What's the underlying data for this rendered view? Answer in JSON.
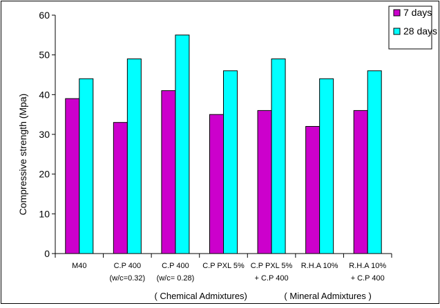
{
  "chart_data": {
    "type": "bar",
    "title": "",
    "xlabel": "",
    "ylabel": "Compressive strength (Mpa)",
    "ylim": [
      0,
      60
    ],
    "yticks": [
      0,
      10,
      20,
      30,
      40,
      50,
      60
    ],
    "grid": false,
    "legend_position": "top-right",
    "categories": [
      [
        "M40"
      ],
      [
        "C.P 400",
        "(w/c=0.32)"
      ],
      [
        "C.P 400",
        "(w/c= 0.28)"
      ],
      [
        "C.P PXL 5%"
      ],
      [
        "C.P PXL 5%",
        "+      C.P 400"
      ],
      [
        "R.H.A 10%"
      ],
      [
        "R.H.A 10%",
        "+ C.P 400"
      ]
    ],
    "series": [
      {
        "name": "7 days",
        "color": "#CC00CC",
        "values": [
          39,
          33,
          41,
          35,
          36,
          32,
          36
        ]
      },
      {
        "name": "28 days",
        "color": "#00FFFF",
        "values": [
          44,
          49,
          55,
          46,
          49,
          44,
          46
        ]
      }
    ],
    "group_labels": [
      "( Chemical Admixtures)",
      "( Mineral Admixtures )"
    ]
  }
}
